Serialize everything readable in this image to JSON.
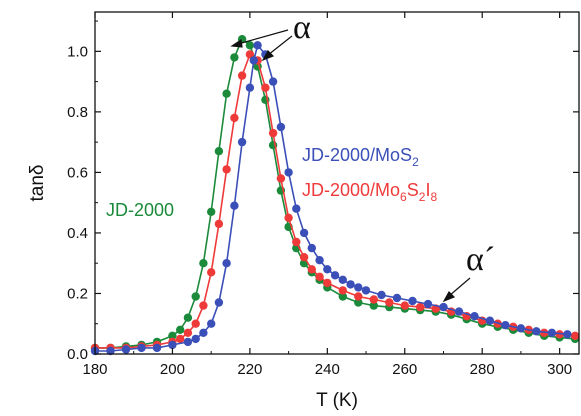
{
  "chart_data": {
    "type": "scatter",
    "xlabel": "T (K)",
    "ylabel": "tanδ",
    "xlim": [
      180,
      305
    ],
    "ylim": [
      0.0,
      1.13
    ],
    "x_ticks": [
      "180",
      "200",
      "220",
      "240",
      "260",
      "280",
      "300"
    ],
    "y_ticks": [
      "0.0",
      "0.2",
      "0.4",
      "0.6",
      "0.8",
      "1.0"
    ],
    "grid": false,
    "series": [
      {
        "name": "JD-2000",
        "color": "#1b8a3a",
        "x": [
          180,
          184,
          188,
          192,
          196,
          200,
          202,
          204,
          206,
          208,
          210,
          212,
          214,
          216,
          218,
          220,
          222,
          224,
          226,
          228,
          230,
          232,
          234,
          236,
          238,
          240,
          244,
          248,
          252,
          256,
          260,
          264,
          268,
          272,
          276,
          280,
          284,
          288,
          292,
          296,
          300,
          304
        ],
        "y": [
          0.02,
          0.02,
          0.025,
          0.03,
          0.04,
          0.06,
          0.08,
          0.12,
          0.19,
          0.3,
          0.47,
          0.67,
          0.86,
          0.98,
          1.04,
          1.02,
          0.95,
          0.84,
          0.69,
          0.54,
          0.42,
          0.35,
          0.3,
          0.27,
          0.245,
          0.22,
          0.19,
          0.17,
          0.16,
          0.155,
          0.15,
          0.145,
          0.14,
          0.13,
          0.115,
          0.1,
          0.09,
          0.08,
          0.07,
          0.06,
          0.055,
          0.05
        ]
      },
      {
        "name": "JD-2000/MoS₂",
        "color": "#3b4fb8",
        "x": [
          180,
          184,
          188,
          192,
          196,
          200,
          204,
          206,
          208,
          210,
          212,
          214,
          216,
          218,
          220,
          221,
          222,
          224,
          226,
          228,
          230,
          232,
          234,
          236,
          238,
          240,
          242,
          244,
          246,
          248,
          250,
          254,
          258,
          262,
          266,
          270,
          274,
          278,
          282,
          286,
          290,
          294,
          298,
          302
        ],
        "y": [
          0.01,
          0.01,
          0.015,
          0.02,
          0.02,
          0.03,
          0.04,
          0.05,
          0.07,
          0.1,
          0.17,
          0.3,
          0.49,
          0.7,
          0.88,
          0.97,
          1.02,
          0.99,
          0.9,
          0.75,
          0.6,
          0.48,
          0.4,
          0.35,
          0.31,
          0.28,
          0.26,
          0.245,
          0.23,
          0.22,
          0.21,
          0.195,
          0.185,
          0.175,
          0.165,
          0.155,
          0.14,
          0.125,
          0.11,
          0.095,
          0.085,
          0.075,
          0.07,
          0.065
        ]
      },
      {
        "name": "JD-2000/Mo₆S₂I₈",
        "color": "#ef3a3a",
        "x": [
          180,
          184,
          188,
          192,
          196,
          200,
          202,
          204,
          206,
          208,
          210,
          212,
          214,
          216,
          218,
          220,
          222,
          224,
          226,
          228,
          230,
          232,
          234,
          236,
          238,
          240,
          244,
          248,
          252,
          256,
          260,
          264,
          268,
          272,
          276,
          280,
          284,
          288,
          292,
          296,
          300,
          304
        ],
        "y": [
          0.02,
          0.02,
          0.02,
          0.025,
          0.03,
          0.04,
          0.05,
          0.07,
          0.1,
          0.16,
          0.27,
          0.43,
          0.61,
          0.78,
          0.92,
          0.99,
          0.97,
          0.88,
          0.73,
          0.58,
          0.45,
          0.37,
          0.32,
          0.28,
          0.255,
          0.235,
          0.21,
          0.19,
          0.18,
          0.17,
          0.16,
          0.155,
          0.15,
          0.14,
          0.125,
          0.11,
          0.1,
          0.09,
          0.08,
          0.07,
          0.065,
          0.06
        ]
      }
    ],
    "annotations": [
      {
        "text": "α"
      },
      {
        "text": "α´"
      }
    ]
  }
}
